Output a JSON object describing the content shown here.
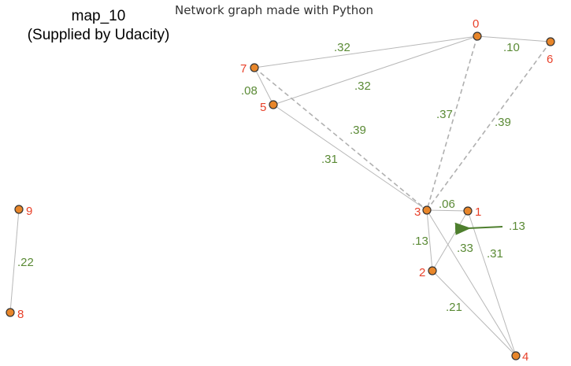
{
  "header": {
    "title": "Network graph made with Python",
    "map_name": "map_10",
    "map_source": "(Supplied by Udacity)"
  },
  "colors": {
    "node_fill": "#e8862a",
    "node_stroke": "#333333",
    "node_label": "#e8412a",
    "edge_label": "#5a8a35",
    "edge_solid": "#b8b8b8",
    "edge_dashed": "#b0b0b0",
    "arrow": "#4e7f2e"
  },
  "graph": {
    "nodes": [
      {
        "id": "0",
        "label": "0"
      },
      {
        "id": "1",
        "label": "1"
      },
      {
        "id": "2",
        "label": "2"
      },
      {
        "id": "3",
        "label": "3"
      },
      {
        "id": "4",
        "label": "4"
      },
      {
        "id": "5",
        "label": "5"
      },
      {
        "id": "6",
        "label": "6"
      },
      {
        "id": "7",
        "label": "7"
      },
      {
        "id": "8",
        "label": "8"
      },
      {
        "id": "9",
        "label": "9"
      }
    ],
    "edges": [
      {
        "from": "7",
        "to": "0",
        "weight": ".32",
        "style": "solid"
      },
      {
        "from": "0",
        "to": "6",
        "weight": ".10",
        "style": "solid"
      },
      {
        "from": "5",
        "to": "0",
        "weight": ".32",
        "style": "solid"
      },
      {
        "from": "7",
        "to": "5",
        "weight": ".08",
        "style": "solid"
      },
      {
        "from": "7",
        "to": "3",
        "weight": ".39",
        "style": "dashed"
      },
      {
        "from": "0",
        "to": "3",
        "weight": ".37",
        "style": "dashed"
      },
      {
        "from": "6",
        "to": "3",
        "weight": ".39",
        "style": "dashed"
      },
      {
        "from": "5",
        "to": "3",
        "weight": ".31",
        "style": "solid"
      },
      {
        "from": "3",
        "to": "1",
        "weight": ".06",
        "style": "solid"
      },
      {
        "from": "3",
        "to": "2",
        "weight": ".13",
        "style": "solid"
      },
      {
        "from": "1",
        "to": "2",
        "weight": ".13",
        "style": "solid"
      },
      {
        "from": "3",
        "to": "4",
        "weight": ".33",
        "style": "solid"
      },
      {
        "from": "1",
        "to": "4",
        "weight": ".31",
        "style": "solid"
      },
      {
        "from": "2",
        "to": "4",
        "weight": ".21",
        "style": "solid"
      },
      {
        "from": "9",
        "to": "8",
        "weight": ".22",
        "style": "solid"
      }
    ]
  }
}
